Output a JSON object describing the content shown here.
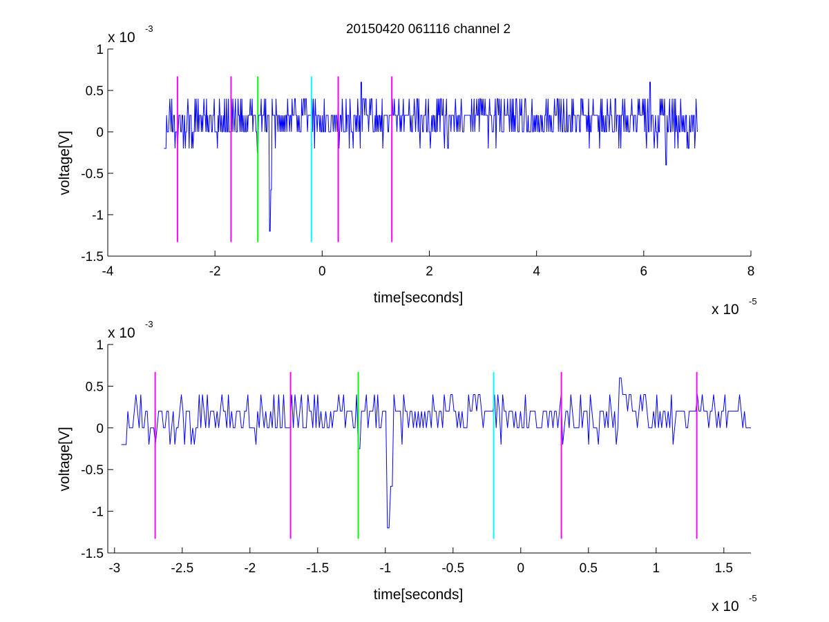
{
  "figure": {
    "title": "20150420 061116 channel 2"
  },
  "chart_data": [
    {
      "type": "line",
      "title": "20150420 061116 channel 2",
      "xlabel": "time[seconds]",
      "ylabel": "voltage[V]",
      "x_exponent_label": "x 10",
      "x_exponent": "-5",
      "y_exponent_label": "x 10",
      "y_exponent": "-3",
      "xlim": [
        -4,
        8
      ],
      "ylim": [
        -1.5,
        1
      ],
      "xticks": [
        -4,
        -2,
        0,
        2,
        4,
        6,
        8
      ],
      "xtick_labels": [
        "-4",
        "-2",
        "0",
        "2",
        "4",
        "6",
        "8"
      ],
      "yticks": [
        -1.5,
        -1,
        -0.5,
        0,
        0.5,
        1
      ],
      "ytick_labels": [
        "-1.5",
        "-1",
        "-0.5",
        "0",
        "0.5",
        "1"
      ],
      "grid": false,
      "signal": {
        "color": "#0000ff",
        "x_start": -2.95,
        "x_end": 7.0,
        "levels": [
          -0.2,
          0,
          0.2,
          0.4
        ],
        "baseline_mean": 0.13,
        "events": [
          {
            "x": -1.2,
            "y": -0.25
          },
          {
            "x": -0.98,
            "y": -1.2
          },
          {
            "x": -0.95,
            "y": -0.7
          },
          {
            "x": 0.73,
            "y": 0.6
          },
          {
            "x": 6.12,
            "y": 0.6
          },
          {
            "x": 6.42,
            "y": -0.4
          }
        ]
      },
      "markers": [
        {
          "x": -2.7,
          "color": "#ff00ff"
        },
        {
          "x": -1.7,
          "color": "#ff00ff"
        },
        {
          "x": -1.2,
          "color": "#00ff00"
        },
        {
          "x": -0.2,
          "color": "#00ffff"
        },
        {
          "x": 0.3,
          "color": "#ff00ff"
        },
        {
          "x": 1.3,
          "color": "#ff00ff"
        }
      ],
      "marker_range": [
        -1.33,
        0.67
      ]
    },
    {
      "type": "line",
      "xlabel": "time[seconds]",
      "ylabel": "voltage[V]",
      "x_exponent_label": "x 10",
      "x_exponent": "-5",
      "y_exponent_label": "x 10",
      "y_exponent": "-3",
      "xlim": [
        -3.05,
        1.7
      ],
      "ylim": [
        -1.5,
        1
      ],
      "xticks": [
        -3,
        -2.5,
        -2,
        -1.5,
        -1,
        -0.5,
        0,
        0.5,
        1,
        1.5
      ],
      "xtick_labels": [
        "-3",
        "-2.5",
        "-2",
        "-1.5",
        "-1",
        "-0.5",
        "0",
        "0.5",
        "1",
        "1.5"
      ],
      "yticks": [
        -1.5,
        -1,
        -0.5,
        0,
        0.5,
        1
      ],
      "ytick_labels": [
        "-1.5",
        "-1",
        "-0.5",
        "0",
        "0.5",
        "1"
      ],
      "grid": false,
      "signal": {
        "color": "#0000ff",
        "x_start": -2.95,
        "x_end": 1.7,
        "levels": [
          -0.2,
          0,
          0.2,
          0.4
        ],
        "baseline_mean": 0.13,
        "events": [
          {
            "x": -1.2,
            "y": -0.25
          },
          {
            "x": -0.98,
            "y": -1.2
          },
          {
            "x": -0.95,
            "y": -0.7
          },
          {
            "x": 0.73,
            "y": 0.6
          }
        ]
      },
      "markers": [
        {
          "x": -2.7,
          "color": "#ff00ff"
        },
        {
          "x": -1.7,
          "color": "#ff00ff"
        },
        {
          "x": -1.2,
          "color": "#00ff00"
        },
        {
          "x": -0.2,
          "color": "#00ffff"
        },
        {
          "x": 0.3,
          "color": "#ff00ff"
        },
        {
          "x": 1.3,
          "color": "#ff00ff"
        }
      ],
      "marker_range": [
        -1.33,
        0.67
      ]
    }
  ]
}
